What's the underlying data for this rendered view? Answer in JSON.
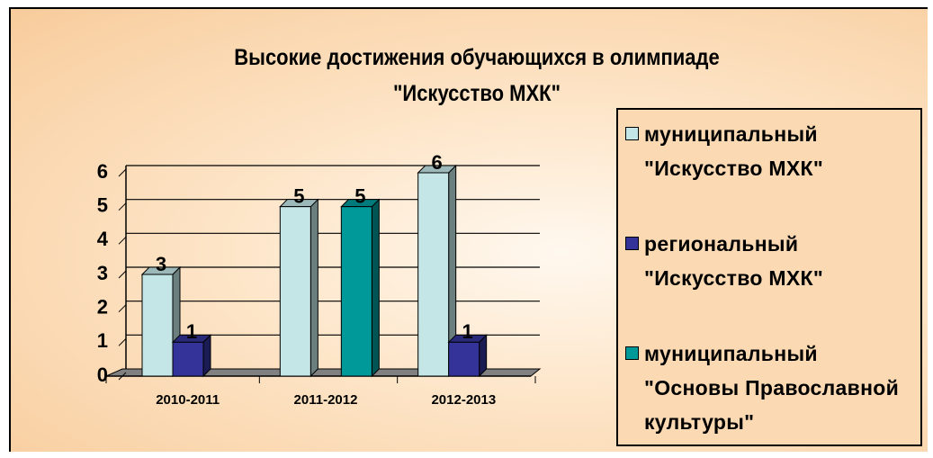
{
  "chart_data": {
    "type": "bar3d",
    "title": "Высокие достижения обучающихся в олимпиаде\n\"Искусство МХК\"",
    "categories": [
      "2010-2011",
      "2011-2012",
      "2012-2013"
    ],
    "series": [
      {
        "name": "муниципальный\n\"Искусство МХК\"",
        "color": "#c4e6e6",
        "values": [
          3,
          5,
          6
        ]
      },
      {
        "name": "региональный\n\"Искусство МХК\"",
        "color": "#333399",
        "values": [
          1,
          null,
          1
        ]
      },
      {
        "name": "муниципальный\n\"Основы Православной\nкультуры\"",
        "color": "#009999",
        "values": [
          null,
          5,
          null
        ]
      }
    ],
    "ylim": [
      0,
      6
    ],
    "yticks": [
      0,
      1,
      2,
      3,
      4,
      5,
      6
    ],
    "grid": true,
    "legend": "right"
  }
}
